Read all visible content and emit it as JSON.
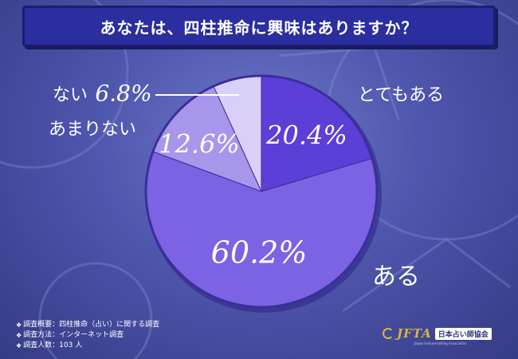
{
  "title": "あなたは、四柱推命に興味はありますか？",
  "chart_data": {
    "type": "pie",
    "slices": [
      {
        "label": "とてもある",
        "value": 20.4,
        "value_label": "20.4%",
        "color": "#5b3fd6"
      },
      {
        "label": "ある",
        "value": 60.2,
        "value_label": "60.2%",
        "color": "#7b63e3"
      },
      {
        "label": "あまりない",
        "value": 12.6,
        "value_label": "12.6%",
        "color": "#a896ea"
      },
      {
        "label": "ない",
        "value": 6.8,
        "value_label": "6.8%",
        "color": "#d8d0f6"
      }
    ],
    "start_angle": "12 o'clock",
    "direction": "clockwise",
    "legend": "none; labels placed next to slices"
  },
  "notes": [
    "調査概要：四柱推命（占い）に関する調査",
    "調査方法：インターネット調査",
    "調査人数：103 人"
  ],
  "logo": {
    "abbr": "JFTA",
    "name": "日本占い師協会",
    "subtitle": "Japan Fortune-telling Association"
  },
  "colors": {
    "background": "#4f56ad",
    "title_bar": "#2a2e9e",
    "pie_border": "#3a2f9c",
    "logo_gold": "#d8b443"
  }
}
